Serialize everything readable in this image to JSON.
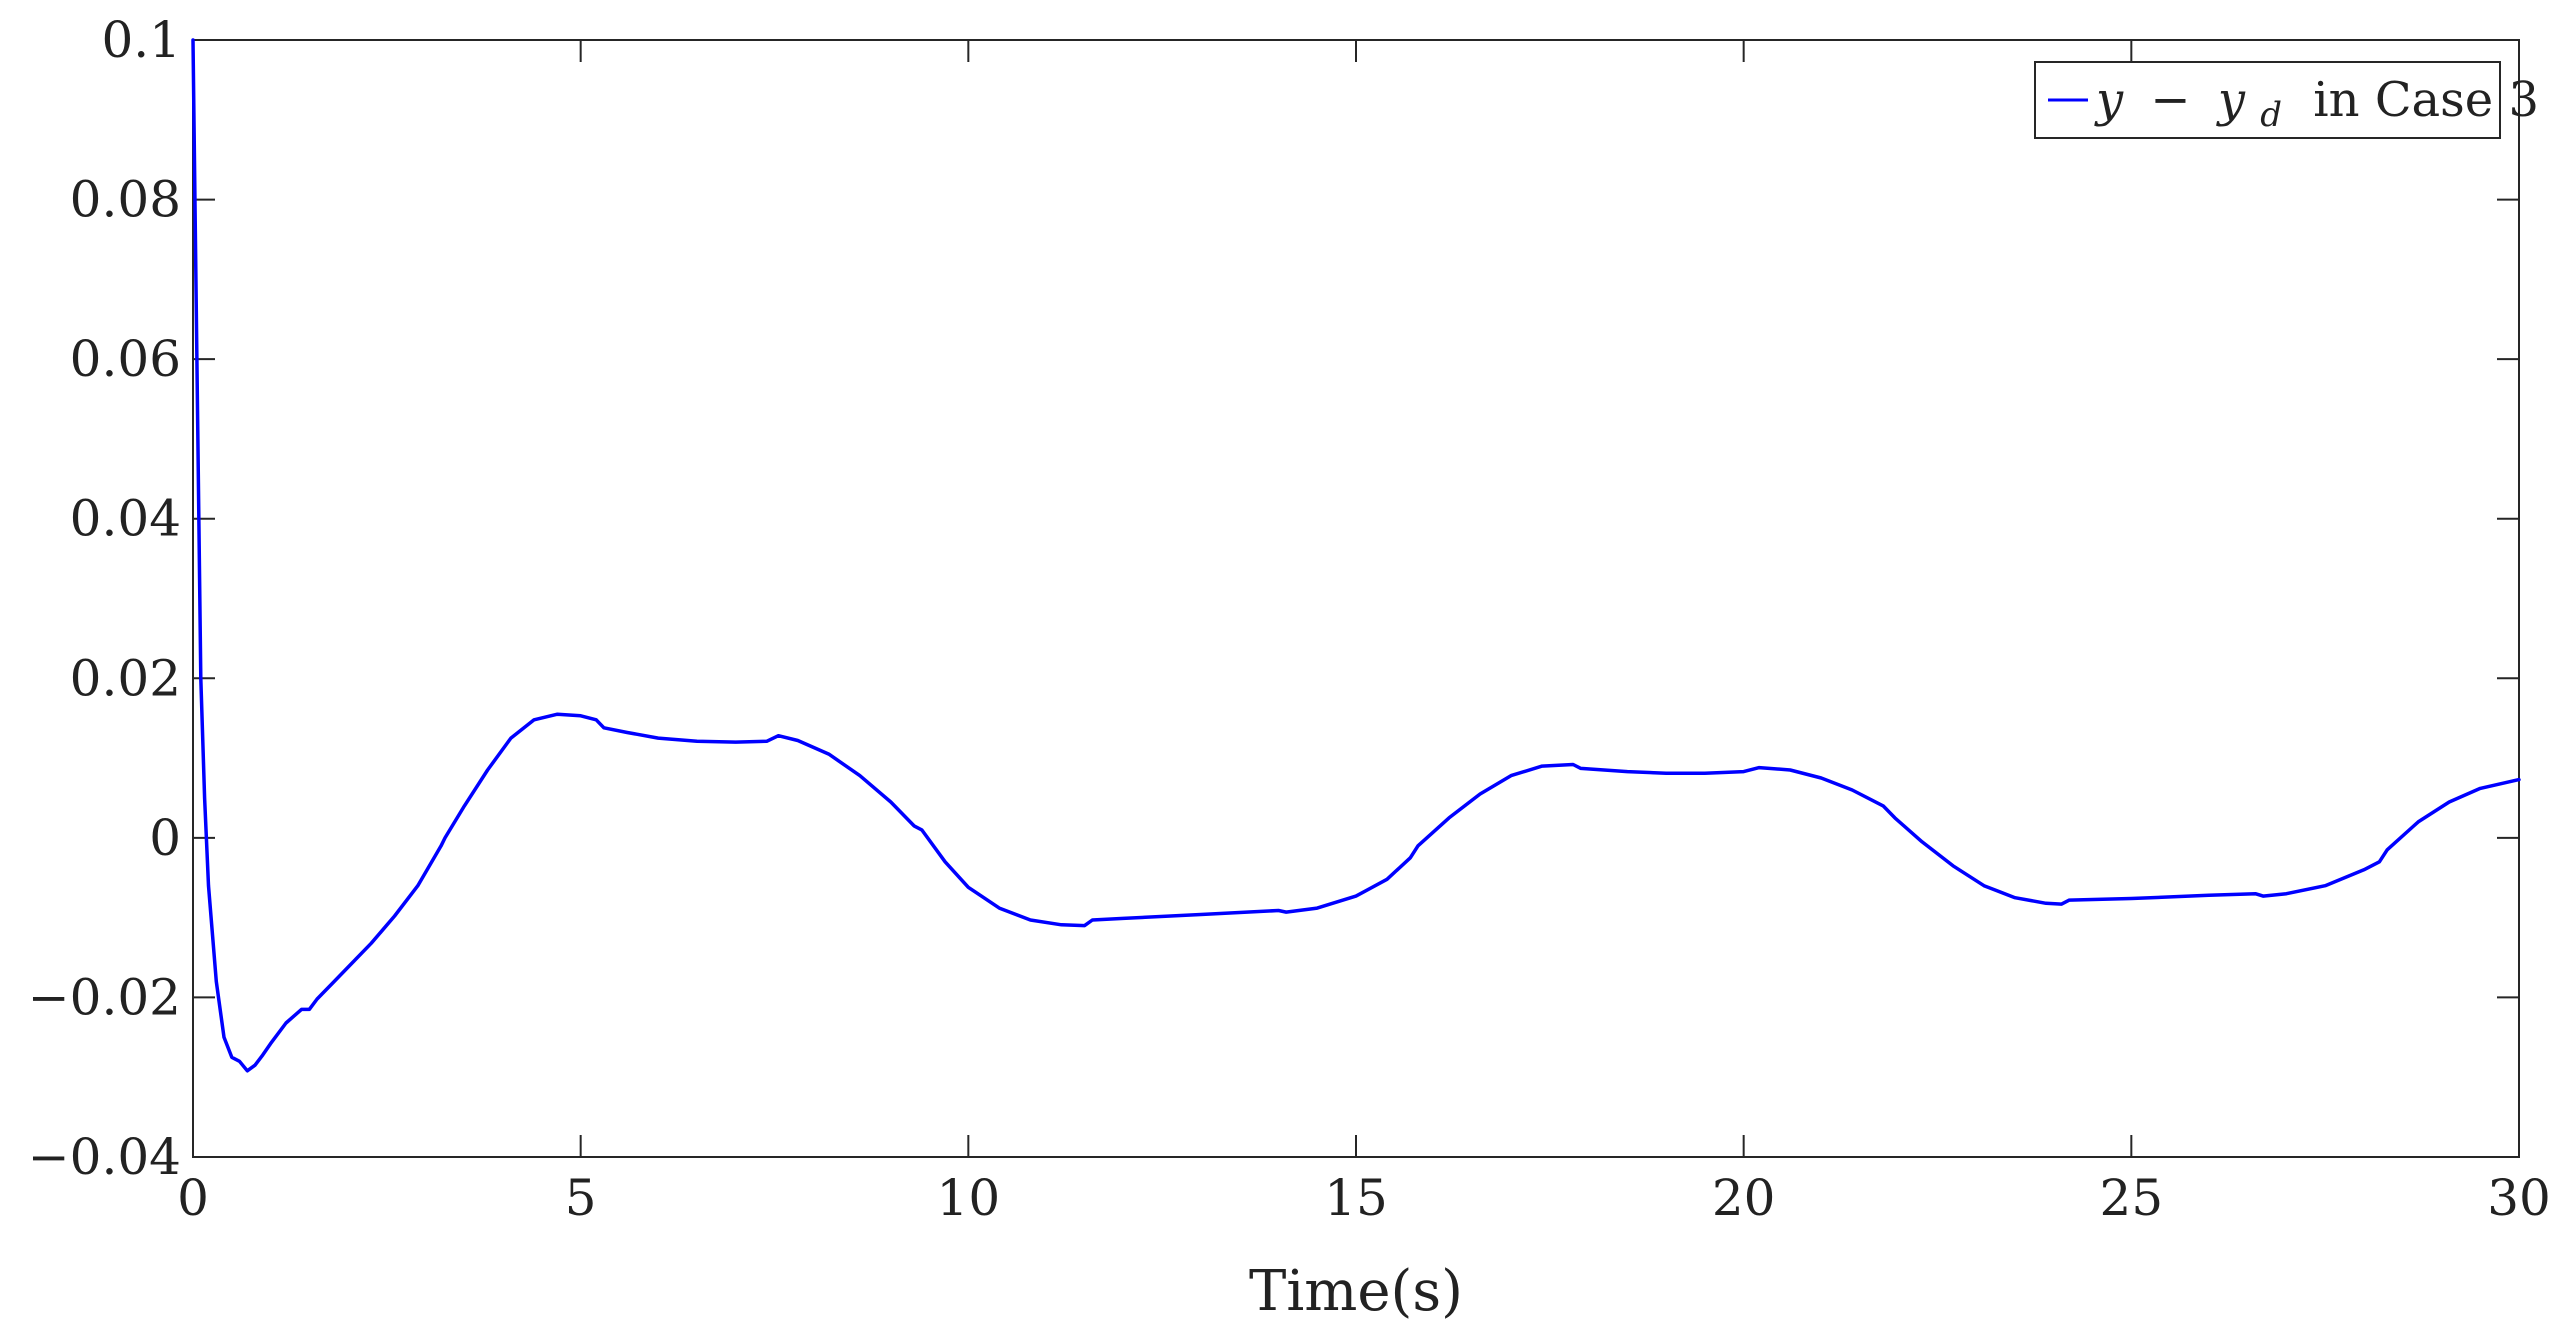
{
  "chart_data": {
    "type": "line",
    "xlabel": "Time(s)",
    "ylabel": "",
    "xlim": [
      0,
      30
    ],
    "ylim": [
      -0.04,
      0.1
    ],
    "xticks": [
      0,
      5,
      10,
      15,
      20,
      25,
      30
    ],
    "xtick_labels": [
      "0",
      "5",
      "10",
      "15",
      "20",
      "25",
      "30"
    ],
    "yticks": [
      -0.04,
      -0.02,
      0,
      0.02,
      0.04,
      0.06,
      0.08,
      0.1
    ],
    "ytick_labels": [
      "−0.04",
      "−0.02",
      "0",
      "0.02",
      "0.04",
      "0.06",
      "0.08",
      "0.1"
    ],
    "grid": false,
    "legend_position": "top-right",
    "series": [
      {
        "name": "y − y_d in Case 3",
        "legend_parts": {
          "var": "y",
          "op": "−",
          "var2": "y",
          "sub": "d",
          "suffix": "in Case 3"
        },
        "color": "#0000ff",
        "x": [
          0,
          0.05,
          0.1,
          0.15,
          0.2,
          0.3,
          0.4,
          0.5,
          0.6,
          0.7,
          0.8,
          0.9,
          1.0,
          1.2,
          1.4,
          1.5,
          1.6,
          1.8,
          2.0,
          2.3,
          2.6,
          2.9,
          3.2,
          3.25,
          3.5,
          3.8,
          4.1,
          4.4,
          4.7,
          5.0,
          5.2,
          5.3,
          5.6,
          6.0,
          6.5,
          7.0,
          7.4,
          7.55,
          7.8,
          8.2,
          8.6,
          9.0,
          9.3,
          9.4,
          9.7,
          10.0,
          10.4,
          10.8,
          11.2,
          11.5,
          11.6,
          12.0,
          13.0,
          14.0,
          14.1,
          14.5,
          15.0,
          15.4,
          15.7,
          15.8,
          16.2,
          16.6,
          17.0,
          17.4,
          17.8,
          17.9,
          18.5,
          19.0,
          19.5,
          20.0,
          20.2,
          20.6,
          21.0,
          21.4,
          21.8,
          21.95,
          22.3,
          22.7,
          23.1,
          23.5,
          23.9,
          24.1,
          24.2,
          25.0,
          26.0,
          26.6,
          26.7,
          27.0,
          27.5,
          28.0,
          28.2,
          28.3,
          28.7,
          29.1,
          29.5,
          30.0
        ],
        "values": [
          0.1,
          0.06,
          0.02,
          0.005,
          -0.006,
          -0.018,
          -0.025,
          -0.0275,
          -0.028,
          -0.0292,
          -0.0285,
          -0.0272,
          -0.0258,
          -0.0232,
          -0.0215,
          -0.0215,
          -0.0202,
          -0.0182,
          -0.0162,
          -0.0132,
          -0.0098,
          -0.006,
          -0.001,
          0.0,
          0.004,
          0.0085,
          0.0125,
          0.0148,
          0.0155,
          0.0153,
          0.0148,
          0.0138,
          0.0132,
          0.0125,
          0.0121,
          0.012,
          0.0121,
          0.0128,
          0.0122,
          0.0105,
          0.0078,
          0.0045,
          0.0015,
          0.001,
          -0.003,
          -0.0062,
          -0.0088,
          -0.0103,
          -0.0109,
          -0.011,
          -0.0103,
          -0.0101,
          -0.0096,
          -0.0091,
          -0.0093,
          -0.0088,
          -0.0073,
          -0.0052,
          -0.0025,
          -0.001,
          0.0025,
          0.0055,
          0.0078,
          0.009,
          0.0092,
          0.0087,
          0.0083,
          0.0081,
          0.0081,
          0.0083,
          0.0088,
          0.0085,
          0.0075,
          0.006,
          0.004,
          0.0025,
          -0.0005,
          -0.0035,
          -0.006,
          -0.0075,
          -0.0082,
          -0.0083,
          -0.0078,
          -0.0076,
          -0.0072,
          -0.007,
          -0.0073,
          -0.007,
          -0.006,
          -0.004,
          -0.003,
          -0.0015,
          0.002,
          0.0045,
          0.0062,
          0.0073
        ]
      }
    ]
  }
}
